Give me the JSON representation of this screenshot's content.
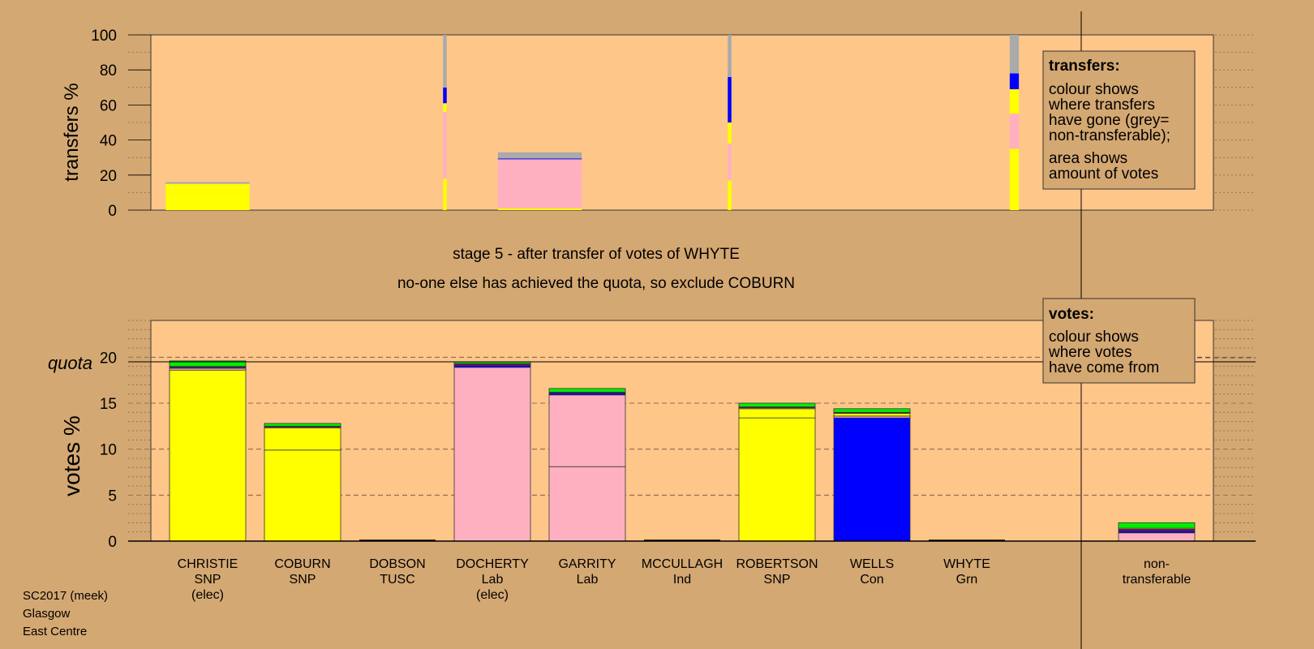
{
  "captions": {
    "stage": "stage 5 - after transfer of votes of WHYTE",
    "action": "no-one else has achieved the quota, so exclude COBURN"
  },
  "footer": [
    "SC2017 (meek)",
    "Glasgow",
    "East Centre"
  ],
  "legends": {
    "transfers": {
      "title": "transfers:",
      "lines_a": [
        "colour shows",
        "where transfers",
        "have gone (grey=",
        "non-transferable);"
      ],
      "lines_b": [
        "area shows",
        "amount of votes"
      ]
    },
    "votes": {
      "title": "votes:",
      "lines": [
        "colour shows",
        "where votes",
        "have come from"
      ]
    }
  },
  "colors": {
    "page_bg": "#d4a872",
    "plot_bg": "#ffc68a",
    "SNP": "#ffff00",
    "Lab": "#ffb0c0",
    "Con": "#0000ff",
    "Grn": "#00ee00",
    "Ind": "#800080",
    "TUSC": "#cc0000",
    "nontransferable": "#aaaaaa"
  },
  "chart_data": [
    {
      "type": "bar",
      "name": "transfers",
      "ylabel": "transfers %",
      "ylim": [
        0,
        100
      ],
      "yticks": [
        0,
        20,
        40,
        60,
        80,
        100
      ],
      "grid": true,
      "columns": [
        {
          "pos": 0,
          "width_share": 1.0,
          "segments": [
            {
              "color": "SNP",
              "value": 10
            },
            {
              "color": "SNP",
              "value": 5
            },
            {
              "color": "nontransferable",
              "value": 1
            }
          ]
        },
        {
          "pos": 2.5,
          "width_share": 0.04,
          "segments": [
            {
              "color": "SNP",
              "value": 18
            },
            {
              "color": "Lab",
              "value": 38
            },
            {
              "color": "SNP",
              "value": 5
            },
            {
              "color": "Con",
              "value": 9
            },
            {
              "color": "nontransferable",
              "value": 30
            }
          ]
        },
        {
          "pos": 3.5,
          "width_share": 1.0,
          "segments": [
            {
              "color": "SNP",
              "value": 1
            },
            {
              "color": "Lab",
              "value": 28
            },
            {
              "color": "Con",
              "value": 0.5
            },
            {
              "color": "nontransferable",
              "value": 3.5
            }
          ]
        },
        {
          "pos": 5.5,
          "width_share": 0.04,
          "segments": [
            {
              "color": "SNP",
              "value": 17
            },
            {
              "color": "Lab",
              "value": 21
            },
            {
              "color": "SNP",
              "value": 12
            },
            {
              "color": "Con",
              "value": 26
            },
            {
              "color": "nontransferable",
              "value": 24
            }
          ]
        },
        {
          "pos": 8.5,
          "width_share": 0.1,
          "segments": [
            {
              "color": "SNP",
              "value": 35
            },
            {
              "color": "Lab",
              "value": 20
            },
            {
              "color": "SNP",
              "value": 14
            },
            {
              "color": "Con",
              "value": 9
            },
            {
              "color": "nontransferable",
              "value": 22
            }
          ]
        }
      ]
    },
    {
      "type": "bar",
      "name": "votes",
      "ylabel": "votes %",
      "quota_label": "quota",
      "quota": 19.5,
      "ylim": [
        0,
        24
      ],
      "yticks": [
        0,
        5,
        10,
        15,
        20
      ],
      "categories": [
        {
          "name": "CHRISTIE",
          "party": "SNP",
          "status": "(elec)"
        },
        {
          "name": "COBURN",
          "party": "SNP",
          "status": ""
        },
        {
          "name": "DOBSON",
          "party": "TUSC",
          "status": ""
        },
        {
          "name": "DOCHERTY",
          "party": "Lab",
          "status": "(elec)"
        },
        {
          "name": "GARRITY",
          "party": "Lab",
          "status": ""
        },
        {
          "name": "MCCULLAGH",
          "party": "Ind",
          "status": ""
        },
        {
          "name": "ROBERTSON",
          "party": "SNP",
          "status": ""
        },
        {
          "name": "WELLS",
          "party": "Con",
          "status": ""
        },
        {
          "name": "WHYTE",
          "party": "Grn",
          "status": ""
        },
        {
          "name": "non-",
          "party": "transferable",
          "status": ""
        }
      ],
      "stacks": [
        [
          {
            "color": "SNP",
            "value": 18.6
          },
          {
            "color": "Lab",
            "value": 0.2
          },
          {
            "color": "Con",
            "value": 0.1
          },
          {
            "color": "Ind",
            "value": 0.1
          },
          {
            "color": "Grn",
            "value": 0.6
          }
        ],
        [
          {
            "color": "SNP",
            "value": 9.9
          },
          {
            "color": "SNP",
            "value": 2.4
          },
          {
            "color": "Lab",
            "value": 0.1
          },
          {
            "color": "Ind",
            "value": 0.1
          },
          {
            "color": "Grn",
            "value": 0.3
          }
        ],
        [
          {
            "color": "TUSC",
            "value": 0
          }
        ],
        [
          {
            "color": "Lab",
            "value": 18.9
          },
          {
            "color": "Con",
            "value": 0.2
          },
          {
            "color": "Ind",
            "value": 0.2
          },
          {
            "color": "Grn",
            "value": 0.2
          }
        ],
        [
          {
            "color": "Lab",
            "value": 8.1
          },
          {
            "color": "Lab",
            "value": 7.8
          },
          {
            "color": "Con",
            "value": 0.2
          },
          {
            "color": "Ind",
            "value": 0.1
          },
          {
            "color": "Grn",
            "value": 0.4
          }
        ],
        [
          {
            "color": "Ind",
            "value": 0
          }
        ],
        [
          {
            "color": "SNP",
            "value": 13.4
          },
          {
            "color": "SNP",
            "value": 1
          },
          {
            "color": "Lab",
            "value": 0.1
          },
          {
            "color": "Ind",
            "value": 0.1
          },
          {
            "color": "Grn",
            "value": 0.4
          }
        ],
        [
          {
            "color": "Con",
            "value": 13.4
          },
          {
            "color": "Lab",
            "value": 0.2
          },
          {
            "color": "SNP",
            "value": 0.3
          },
          {
            "color": "Ind",
            "value": 0.1
          },
          {
            "color": "Grn",
            "value": 0.4
          }
        ],
        [
          {
            "color": "Grn",
            "value": 0
          }
        ],
        [
          {
            "color": "Lab",
            "value": 0.9
          },
          {
            "color": "Con",
            "value": 0.2
          },
          {
            "color": "Ind",
            "value": 0.2
          },
          {
            "color": "SNP",
            "value": 0.1
          },
          {
            "color": "Grn",
            "value": 0.6
          }
        ]
      ]
    }
  ]
}
